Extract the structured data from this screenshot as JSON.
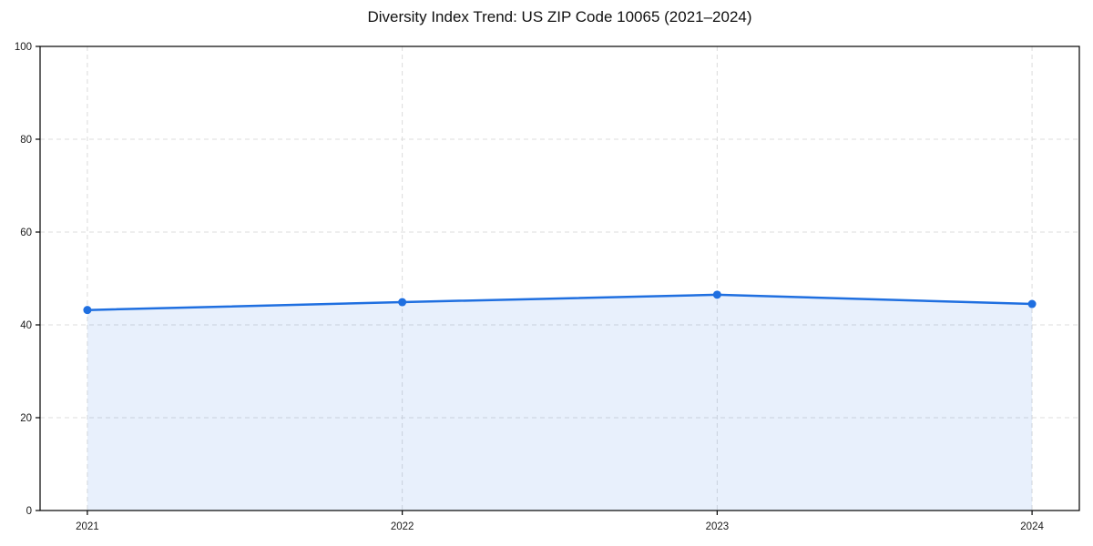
{
  "figure": {
    "background": "#ffffff"
  },
  "chart_data": {
    "type": "area",
    "title": "Diversity Index Trend: US ZIP Code 10065 (2021–2024)",
    "categories": [
      "2021",
      "2022",
      "2023",
      "2024"
    ],
    "values": [
      43.2,
      44.9,
      46.5,
      44.5
    ],
    "xlabel": "",
    "ylabel": "",
    "ylim": [
      0,
      100
    ],
    "yticks": [
      0,
      20,
      40,
      60,
      80,
      100
    ],
    "grid": {
      "show": true,
      "style": "dashed",
      "color": "#dcdcdc"
    },
    "legend": {
      "show": false
    },
    "line_color": "#1f6fe0",
    "marker_color": "#1f6fe0",
    "fill_color": "#1f6fe0",
    "fill_opacity": 0.1,
    "axis_color": "#000000",
    "tick_label_color": "#1a1a1a",
    "x_margin_fraction": 0.0455
  }
}
